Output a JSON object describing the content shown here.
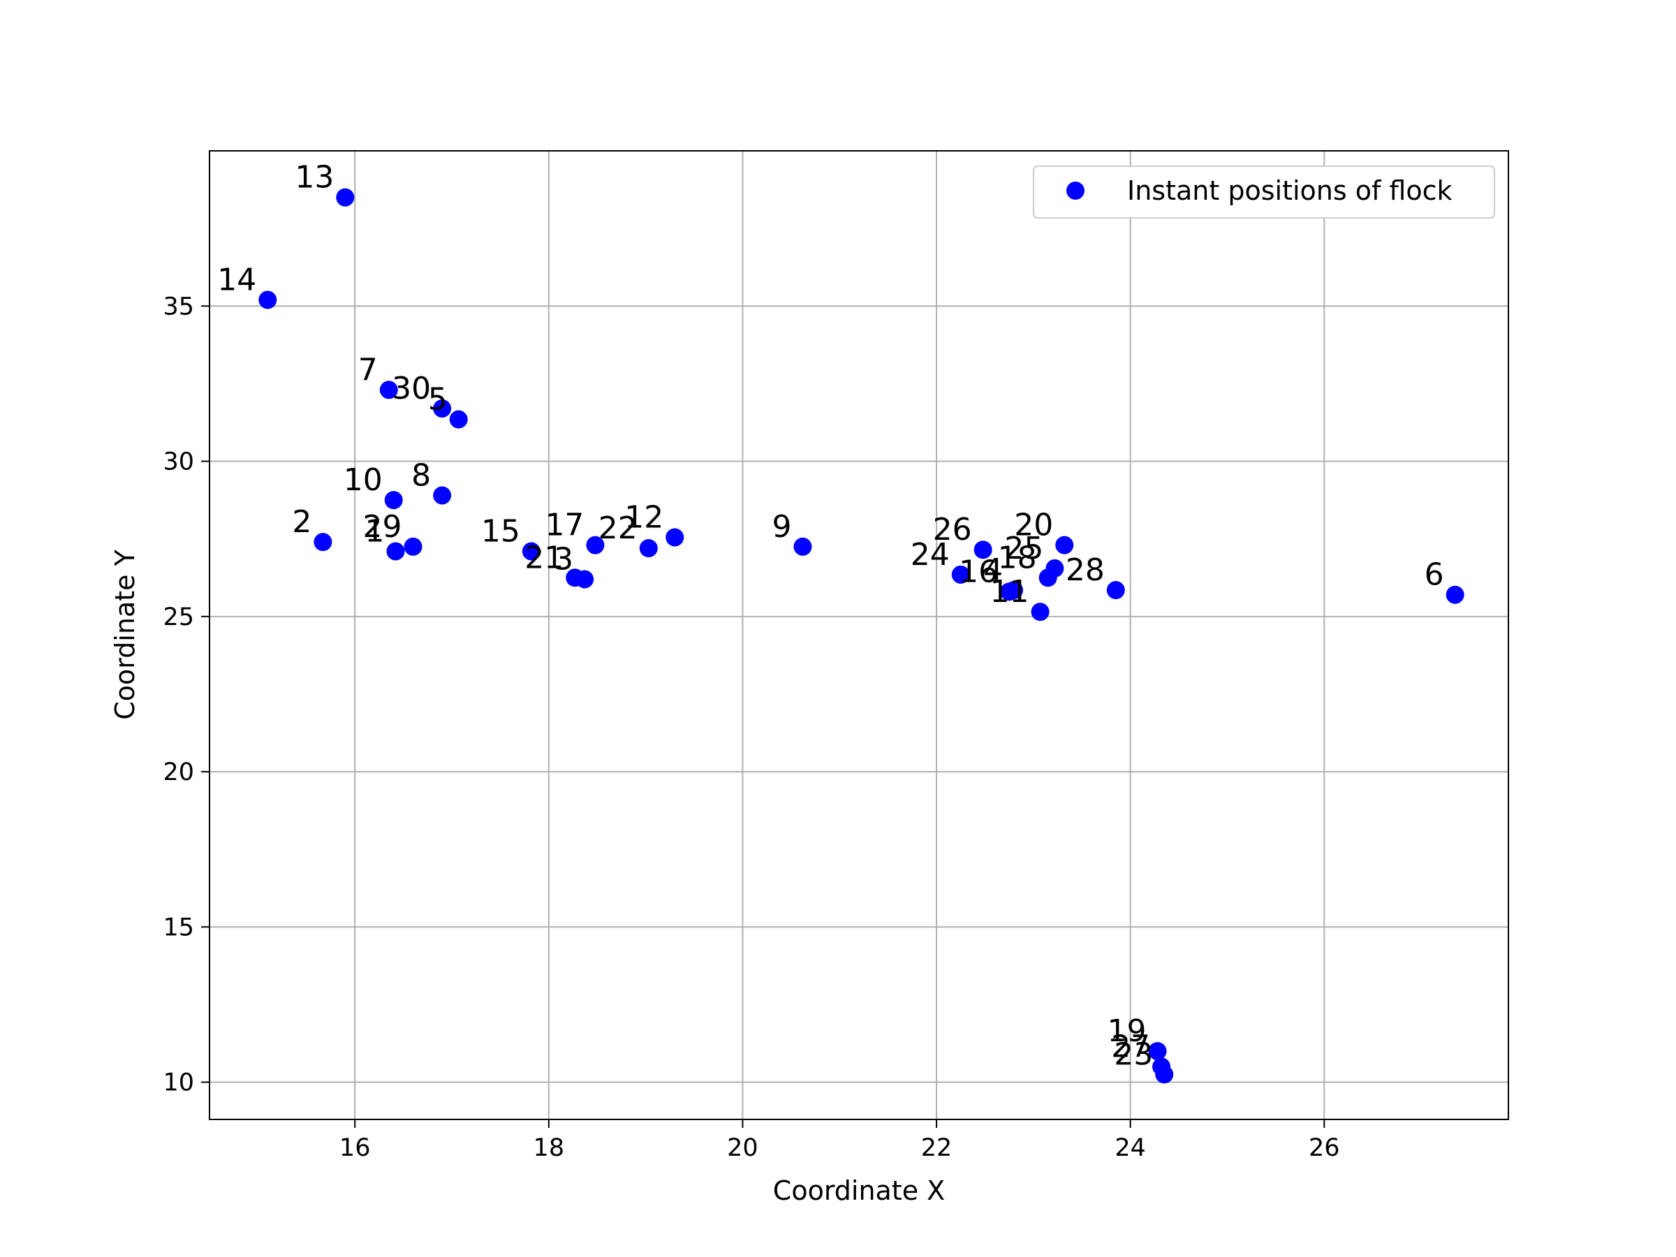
{
  "chart_data": {
    "type": "scatter",
    "title": "",
    "xlabel": "Coordinate X",
    "ylabel": "Coordinate Y",
    "xlim": [
      14.5,
      27.9
    ],
    "ylim": [
      8.8,
      40.0
    ],
    "xticks": [
      16,
      18,
      20,
      22,
      24,
      26
    ],
    "yticks": [
      10,
      15,
      20,
      25,
      30,
      35
    ],
    "grid": true,
    "legend": {
      "placement": "top-right",
      "entries": [
        "Instant positions of flock"
      ]
    },
    "series": [
      {
        "name": "Instant positions of flock",
        "color": "#0000ff",
        "marker": "circle",
        "points": [
          {
            "label": "1",
            "x": 16.42,
            "y": 27.1
          },
          {
            "label": "2",
            "x": 15.67,
            "y": 27.4
          },
          {
            "label": "3",
            "x": 18.37,
            "y": 26.2
          },
          {
            "label": "4",
            "x": 22.8,
            "y": 25.85
          },
          {
            "label": "5",
            "x": 17.07,
            "y": 31.35
          },
          {
            "label": "6",
            "x": 27.35,
            "y": 25.7
          },
          {
            "label": "7",
            "x": 16.35,
            "y": 32.3
          },
          {
            "label": "8",
            "x": 16.9,
            "y": 28.9
          },
          {
            "label": "9",
            "x": 20.62,
            "y": 27.25
          },
          {
            "label": "10",
            "x": 16.4,
            "y": 28.75
          },
          {
            "label": "11",
            "x": 23.07,
            "y": 25.15
          },
          {
            "label": "12",
            "x": 19.3,
            "y": 27.55
          },
          {
            "label": "13",
            "x": 15.9,
            "y": 38.5
          },
          {
            "label": "14",
            "x": 15.1,
            "y": 35.2
          },
          {
            "label": "15",
            "x": 17.82,
            "y": 27.1
          },
          {
            "label": "16",
            "x": 22.75,
            "y": 25.8
          },
          {
            "label": "17",
            "x": 18.48,
            "y": 27.3
          },
          {
            "label": "18",
            "x": 23.15,
            "y": 26.25
          },
          {
            "label": "19",
            "x": 24.28,
            "y": 11.0
          },
          {
            "label": "20",
            "x": 23.32,
            "y": 27.3
          },
          {
            "label": "21",
            "x": 18.27,
            "y": 26.25
          },
          {
            "label": "22",
            "x": 19.03,
            "y": 27.2
          },
          {
            "label": "23",
            "x": 24.35,
            "y": 10.25
          },
          {
            "label": "24",
            "x": 22.25,
            "y": 26.35
          },
          {
            "label": "25",
            "x": 23.22,
            "y": 26.55
          },
          {
            "label": "26",
            "x": 22.48,
            "y": 27.15
          },
          {
            "label": "27",
            "x": 24.32,
            "y": 10.5
          },
          {
            "label": "28",
            "x": 23.85,
            "y": 25.85
          },
          {
            "label": "29",
            "x": 16.6,
            "y": 27.25
          },
          {
            "label": "30",
            "x": 16.9,
            "y": 31.7
          }
        ]
      }
    ]
  }
}
